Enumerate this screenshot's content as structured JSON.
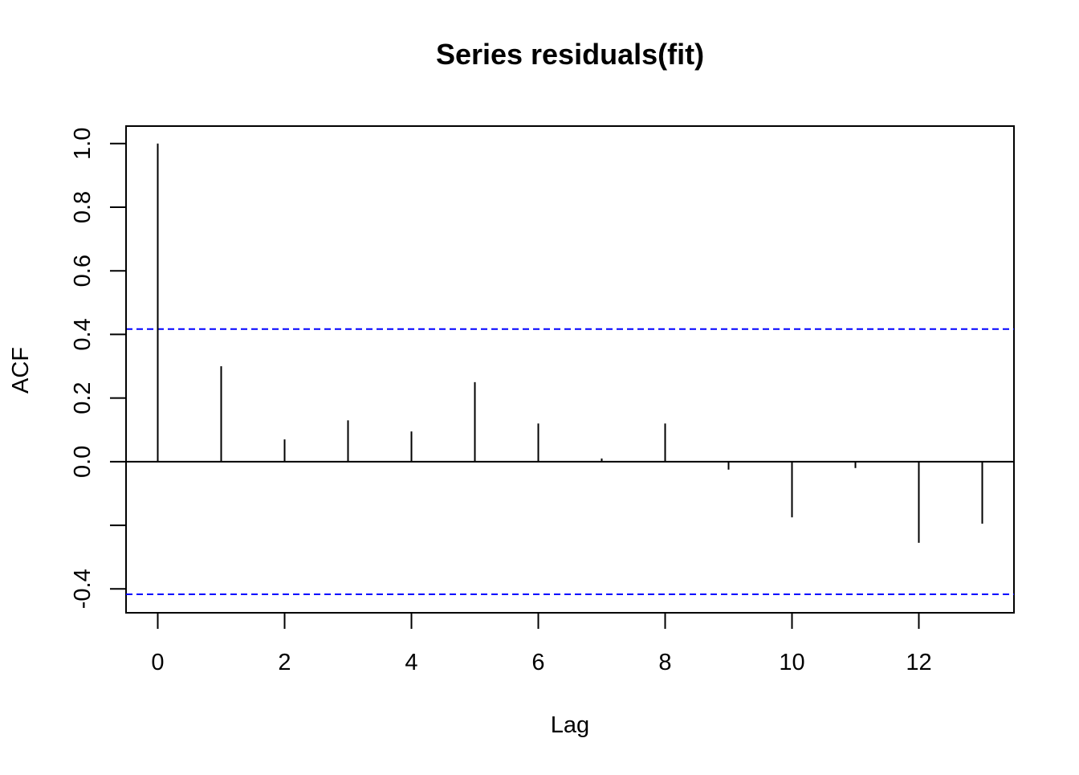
{
  "chart_data": {
    "type": "bar",
    "title": "Series  residuals(fit)",
    "xlabel": "Lag",
    "ylabel": "ACF",
    "xlim": [
      -0.5,
      13.5
    ],
    "ylim": [
      -0.475,
      1.055
    ],
    "xticks": [
      0,
      2,
      4,
      6,
      8,
      10,
      12
    ],
    "yticks": [
      1.0,
      0.8,
      0.6,
      0.4,
      0.2,
      0.0,
      -0.2,
      -0.4
    ],
    "ytick_labels": [
      "1.0",
      "0.8",
      "0.6",
      "0.4",
      "0.2",
      "0.0",
      "",
      "-0.4"
    ],
    "lags": [
      0,
      1,
      2,
      3,
      4,
      5,
      6,
      7,
      8,
      9,
      10,
      11,
      12,
      13
    ],
    "values": [
      1.0,
      0.3,
      0.07,
      0.13,
      0.095,
      0.25,
      0.12,
      0.01,
      0.12,
      -0.025,
      -0.175,
      -0.02,
      -0.255,
      -0.195
    ],
    "confidence_bounds": [
      0.417,
      -0.417
    ],
    "colors": {
      "bars": "#000000",
      "bounds": "#0000ff",
      "axes": "#000000"
    }
  }
}
